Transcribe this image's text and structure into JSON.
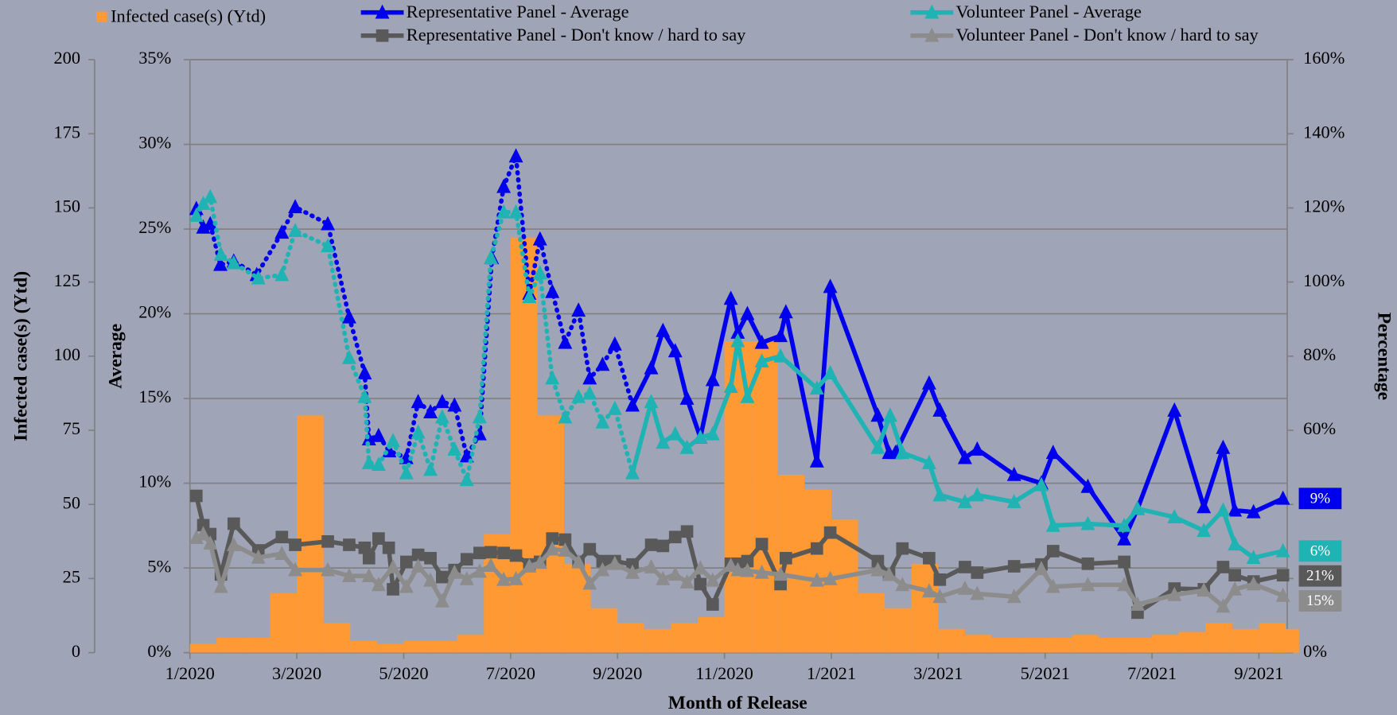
{
  "chart_data": {
    "type": "line",
    "x_label": "Month of Release",
    "y_label": "Average",
    "y2_label": "Percentage",
    "y3_label": "Infected case(s) (Ytd)",
    "xlim": [
      0,
      20.53
    ],
    "xticks": [
      {
        "value": 0,
        "label": "1/2020"
      },
      {
        "value": 2,
        "label": "3/2020"
      },
      {
        "value": 4,
        "label": "5/2020"
      },
      {
        "value": 6,
        "label": "7/2020"
      },
      {
        "value": 8,
        "label": "9/2020"
      },
      {
        "value": 10,
        "label": "11/2020"
      },
      {
        "value": 12,
        "label": "1/2021"
      },
      {
        "value": 14,
        "label": "3/2021"
      },
      {
        "value": 16,
        "label": "5/2021"
      },
      {
        "value": 18,
        "label": "7/2021"
      },
      {
        "value": 20,
        "label": "9/2021"
      }
    ],
    "ylim": [
      0,
      35
    ],
    "yticks": [
      {
        "value": 0,
        "label": "0%"
      },
      {
        "value": 5,
        "label": "5%"
      },
      {
        "value": 10,
        "label": "10%"
      },
      {
        "value": 15,
        "label": "15%"
      },
      {
        "value": 20,
        "label": "20%"
      },
      {
        "value": 25,
        "label": "25%"
      },
      {
        "value": 30,
        "label": "30%"
      },
      {
        "value": 35,
        "label": "35%"
      }
    ],
    "y2lim": [
      0,
      160
    ],
    "y2ticks": [
      {
        "value": 0,
        "label": "0%"
      },
      {
        "value": 20,
        "label": "20%"
      },
      {
        "value": 40,
        "label": "40%"
      },
      {
        "value": 60,
        "label": "60%"
      },
      {
        "value": 80,
        "label": "80%"
      },
      {
        "value": 100,
        "label": "100%"
      },
      {
        "value": 120,
        "label": "120%"
      },
      {
        "value": 140,
        "label": "140%"
      },
      {
        "value": 160,
        "label": "160%"
      }
    ],
    "y3lim": [
      0,
      200
    ],
    "y3ticks": [
      0,
      25,
      50,
      75,
      100,
      125,
      150,
      175,
      200
    ],
    "grid": true,
    "legend": "top",
    "series": [
      {
        "name": "Infected case(s) (Ytd)",
        "type": "bar",
        "axis": "y3",
        "color": "#ff9933",
        "x": [
          0.25,
          0.75,
          1.25,
          1.75,
          2.25,
          2.75,
          3.25,
          3.75,
          4.25,
          4.75,
          5.25,
          5.75,
          6.25,
          6.75,
          7.25,
          7.75,
          8.25,
          8.75,
          9.25,
          9.75,
          10.25,
          10.75,
          11.25,
          11.75,
          12.25,
          12.75,
          13.25,
          13.75,
          14.25,
          14.75,
          15.25,
          15.75,
          16.25,
          16.75,
          17.25,
          17.75,
          18.25,
          18.75,
          19.25,
          19.75,
          20.25,
          20.5
        ],
        "values": [
          3,
          5,
          5,
          20,
          80,
          10,
          4,
          3,
          4,
          4,
          6,
          40,
          140,
          80,
          30,
          15,
          10,
          8,
          10,
          12,
          105,
          105,
          60,
          55,
          45,
          20,
          15,
          30,
          8,
          6,
          5,
          5,
          5,
          6,
          5,
          5,
          6,
          7,
          10,
          8,
          10,
          8
        ]
      },
      {
        "name": "Representative Panel - Average",
        "type": "line",
        "axis": "y",
        "color": "#0000ee",
        "marker": "triangle",
        "dotted_until": 8.28,
        "end_label": "9%",
        "x": [
          0.12,
          0.25,
          0.38,
          0.57,
          0.82,
          1.25,
          1.72,
          1.97,
          2.58,
          2.98,
          3.27,
          3.35,
          3.53,
          3.73,
          4.05,
          4.27,
          4.5,
          4.72,
          4.95,
          5.18,
          5.42,
          5.65,
          5.87,
          6.1,
          6.35,
          6.55,
          6.78,
          7.02,
          7.27,
          7.48,
          7.72,
          7.95,
          8.28,
          8.63,
          8.85,
          9.08,
          9.3,
          9.55,
          9.78,
          10.12,
          10.25,
          10.43,
          10.7,
          11.05,
          11.15,
          11.73,
          11.98,
          12.87,
          13.08,
          13.2,
          13.83,
          14.03,
          14.5,
          14.73,
          15.42,
          15.93,
          16.15,
          16.8,
          17.48,
          17.73,
          18.42,
          18.97,
          19.33,
          19.55,
          19.9,
          20.45
        ],
        "values": [
          26.2,
          25.1,
          25.3,
          22.9,
          23.1,
          22.3,
          24.8,
          26.3,
          25.3,
          19.8,
          16.5,
          12.6,
          12.8,
          11.9,
          11.5,
          14.8,
          14.2,
          14.8,
          14.6,
          11.6,
          12.9,
          23.3,
          27.5,
          29.3,
          21.2,
          24.4,
          21.3,
          18.3,
          20.2,
          16.2,
          17.0,
          18.2,
          14.6,
          16.8,
          19.0,
          17.8,
          15.0,
          12.7,
          16.1,
          20.9,
          18.9,
          20.0,
          18.3,
          18.7,
          20.1,
          11.3,
          21.6,
          14.0,
          11.8,
          11.8,
          15.9,
          14.3,
          11.5,
          12.0,
          10.5,
          10.0,
          11.8,
          9.8,
          6.7,
          8.5,
          14.3,
          8.6,
          12.1,
          8.4,
          8.3,
          9.1
        ]
      },
      {
        "name": "Representative Panel - Don't know / hard to say",
        "type": "line",
        "axis": "y2",
        "color": "#595959",
        "marker": "square",
        "end_label": "21%",
        "x": [
          0.12,
          0.25,
          0.38,
          0.58,
          0.82,
          1.28,
          1.72,
          1.97,
          2.58,
          2.98,
          3.27,
          3.35,
          3.53,
          3.72,
          3.8,
          4.05,
          4.27,
          4.5,
          4.72,
          4.95,
          5.18,
          5.42,
          5.63,
          5.87,
          6.1,
          6.35,
          6.55,
          6.78,
          7.02,
          7.27,
          7.48,
          7.72,
          7.95,
          8.28,
          8.63,
          8.85,
          9.08,
          9.3,
          9.55,
          9.78,
          10.12,
          10.25,
          10.43,
          10.7,
          11.05,
          11.15,
          11.73,
          11.98,
          12.87,
          13.08,
          13.33,
          13.83,
          14.03,
          14.5,
          14.73,
          15.42,
          15.93,
          16.15,
          16.8,
          17.48,
          17.73,
          18.42,
          18.97,
          19.33,
          19.55,
          19.9,
          20.45
        ],
        "values": [
          42.3,
          34.4,
          32.0,
          21.1,
          34.8,
          27.6,
          31.2,
          29.1,
          30.0,
          29.1,
          28.3,
          25.5,
          30.8,
          28.3,
          17.1,
          24.5,
          26.4,
          25.5,
          20.4,
          22.3,
          25.2,
          26.9,
          27.1,
          26.9,
          26.2,
          23.8,
          24.5,
          30.8,
          30.5,
          24.5,
          27.9,
          24.7,
          24.7,
          23.8,
          29.1,
          28.8,
          31.2,
          32.7,
          18.5,
          13.0,
          24.0,
          24.0,
          24.7,
          29.3,
          18.5,
          25.5,
          28.1,
          32.4,
          24.7,
          21.1,
          28.1,
          25.5,
          19.7,
          23.1,
          21.6,
          23.3,
          23.8,
          27.4,
          24.0,
          24.5,
          10.8,
          17.3,
          17.1,
          23.1,
          20.9,
          19.2,
          20.9
        ]
      },
      {
        "name": "Volunteer Panel - Average",
        "type": "line",
        "axis": "y",
        "color": "#1fb3b3",
        "marker": "triangle",
        "dotted_until": 8.28,
        "end_label": "6%",
        "x": [
          0.12,
          0.25,
          0.38,
          0.58,
          0.82,
          1.28,
          1.72,
          1.97,
          2.58,
          2.98,
          3.27,
          3.35,
          3.53,
          3.8,
          4.05,
          4.27,
          4.5,
          4.72,
          4.95,
          5.18,
          5.42,
          5.63,
          5.87,
          6.1,
          6.35,
          6.55,
          6.78,
          7.02,
          7.27,
          7.48,
          7.72,
          7.95,
          8.28,
          8.63,
          8.85,
          9.08,
          9.3,
          9.55,
          9.78,
          10.12,
          10.25,
          10.43,
          10.7,
          11.05,
          11.73,
          11.98,
          12.87,
          13.1,
          13.33,
          13.83,
          14.03,
          14.5,
          14.73,
          15.42,
          15.93,
          16.15,
          16.8,
          17.48,
          17.73,
          18.42,
          18.97,
          19.33,
          19.55,
          19.9,
          20.45
        ],
        "values": [
          25.8,
          26.5,
          26.9,
          23.5,
          23.0,
          22.1,
          22.3,
          24.9,
          24.0,
          17.4,
          15.1,
          11.2,
          11.1,
          12.5,
          10.6,
          13.0,
          10.8,
          13.9,
          12.0,
          10.2,
          13.9,
          23.3,
          26.0,
          26.0,
          21.0,
          22.4,
          16.2,
          13.9,
          15.1,
          15.3,
          13.6,
          14.4,
          10.6,
          14.8,
          12.4,
          12.9,
          12.1,
          12.7,
          12.9,
          15.7,
          18.4,
          15.1,
          17.2,
          17.5,
          15.6,
          16.5,
          12.1,
          14.0,
          11.8,
          11.2,
          9.3,
          8.9,
          9.3,
          8.9,
          9.9,
          7.5,
          7.6,
          7.5,
          8.5,
          8.0,
          7.2,
          8.4,
          6.4,
          5.6,
          6.0
        ]
      },
      {
        "name": "Volunteer Panel - Don't know / hard to say",
        "type": "line",
        "axis": "y2",
        "color": "#8c8c8c",
        "marker": "triangle",
        "end_label": "15%",
        "x": [
          0.12,
          0.25,
          0.38,
          0.58,
          0.82,
          1.28,
          1.72,
          1.97,
          2.58,
          2.98,
          3.35,
          3.53,
          3.8,
          4.05,
          4.27,
          4.5,
          4.72,
          4.95,
          5.18,
          5.42,
          5.63,
          5.87,
          6.1,
          6.35,
          6.55,
          6.78,
          7.02,
          7.27,
          7.48,
          7.72,
          7.95,
          8.28,
          8.63,
          8.85,
          9.08,
          9.3,
          9.55,
          9.78,
          10.12,
          10.25,
          10.43,
          10.7,
          11.05,
          11.73,
          11.98,
          12.87,
          13.08,
          13.33,
          13.83,
          14.03,
          14.5,
          14.73,
          15.42,
          15.93,
          16.15,
          16.8,
          17.48,
          17.73,
          18.42,
          18.97,
          19.33,
          19.55,
          19.9,
          20.45
        ],
        "values": [
          31.0,
          32.0,
          29.5,
          17.8,
          29.1,
          25.7,
          26.7,
          22.3,
          22.3,
          20.7,
          20.7,
          18.3,
          23.1,
          17.8,
          23.3,
          19.5,
          13.9,
          21.6,
          19.9,
          21.9,
          23.5,
          19.7,
          19.9,
          23.3,
          24.3,
          27.9,
          27.6,
          24.5,
          18.7,
          22.3,
          24.0,
          21.6,
          23.1,
          19.9,
          21.1,
          19.0,
          22.8,
          19.5,
          23.5,
          22.3,
          22.1,
          21.6,
          21.1,
          19.5,
          19.9,
          22.3,
          21.1,
          18.3,
          16.6,
          15.1,
          17.3,
          15.9,
          15.1,
          22.6,
          17.8,
          18.3,
          18.3,
          13.0,
          15.6,
          16.8,
          12.5,
          17.1,
          18.5,
          15.4
        ]
      }
    ]
  }
}
